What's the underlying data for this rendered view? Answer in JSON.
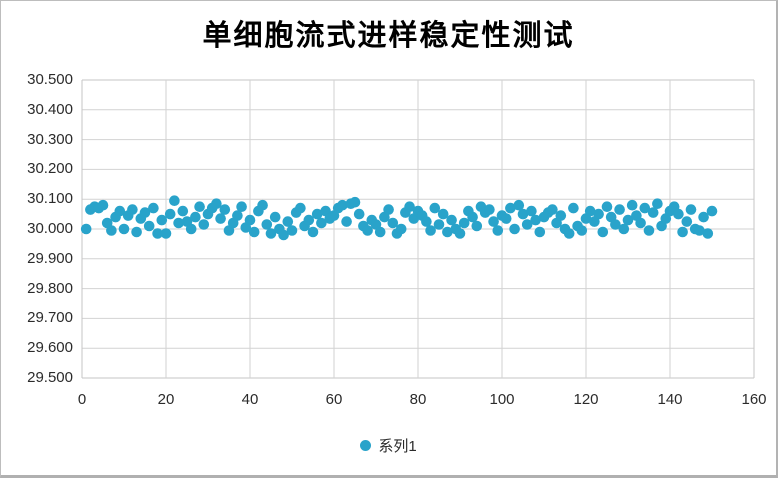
{
  "colors": {
    "marker": "#29A3CA",
    "gridline": "#d2d2d2",
    "plot_border": "#c6c5c5",
    "axis_text": "#2b2b2b",
    "frame_border": "#bdbdbd"
  },
  "legend": {
    "label": "系列1"
  },
  "chart_data": {
    "type": "scatter",
    "title": "单细胞流式进样稳定性测试",
    "xlabel": "",
    "ylabel": "",
    "xlim": [
      0,
      160
    ],
    "ylim": [
      29.5,
      30.5
    ],
    "x_ticks": [
      "0",
      "20",
      "40",
      "60",
      "80",
      "100",
      "120",
      "140",
      "160"
    ],
    "y_ticks": [
      "30.500",
      "30.400",
      "30.300",
      "30.200",
      "30.100",
      "30.000",
      "29.900",
      "29.800",
      "29.700",
      "29.600",
      "29.500"
    ],
    "grid": true,
    "legend_position": "bottom",
    "series": [
      {
        "name": "系列1",
        "color": "#29A3CA",
        "x_start": 1,
        "x_step": 1,
        "values": [
          30.0,
          30.065,
          30.075,
          30.07,
          30.08,
          30.02,
          29.995,
          30.04,
          30.06,
          30.0,
          30.045,
          30.065,
          29.99,
          30.035,
          30.055,
          30.01,
          30.07,
          29.985,
          30.03,
          29.985,
          30.05,
          30.095,
          30.02,
          30.06,
          30.025,
          30.0,
          30.04,
          30.075,
          30.015,
          30.05,
          30.07,
          30.085,
          30.035,
          30.065,
          29.995,
          30.02,
          30.045,
          30.075,
          30.005,
          30.03,
          29.99,
          30.06,
          30.08,
          30.015,
          29.985,
          30.04,
          30.0,
          29.98,
          30.025,
          29.995,
          30.055,
          30.07,
          30.01,
          30.03,
          29.99,
          30.05,
          30.02,
          30.06,
          30.035,
          30.045,
          30.07,
          30.08,
          30.025,
          30.085,
          30.09,
          30.05,
          30.01,
          29.995,
          30.03,
          30.015,
          29.99,
          30.04,
          30.065,
          30.02,
          29.985,
          30.0,
          30.055,
          30.075,
          30.035,
          30.06,
          30.045,
          30.025,
          29.995,
          30.07,
          30.015,
          30.05,
          29.99,
          30.03,
          30.0,
          29.985,
          30.02,
          30.06,
          30.04,
          30.01,
          30.075,
          30.055,
          30.065,
          30.025,
          29.995,
          30.045,
          30.035,
          30.07,
          30.0,
          30.08,
          30.05,
          30.015,
          30.06,
          30.03,
          29.99,
          30.04,
          30.055,
          30.065,
          30.02,
          30.045,
          30.0,
          29.985,
          30.07,
          30.01,
          29.995,
          30.035,
          30.06,
          30.025,
          30.05,
          29.99,
          30.075,
          30.04,
          30.015,
          30.065,
          30.0,
          30.03,
          30.08,
          30.045,
          30.02,
          30.07,
          29.995,
          30.055,
          30.085,
          30.01,
          30.035,
          30.06,
          30.075,
          30.05,
          29.99,
          30.025,
          30.065,
          30.0,
          29.995,
          30.04,
          29.985,
          30.06
        ]
      }
    ]
  }
}
